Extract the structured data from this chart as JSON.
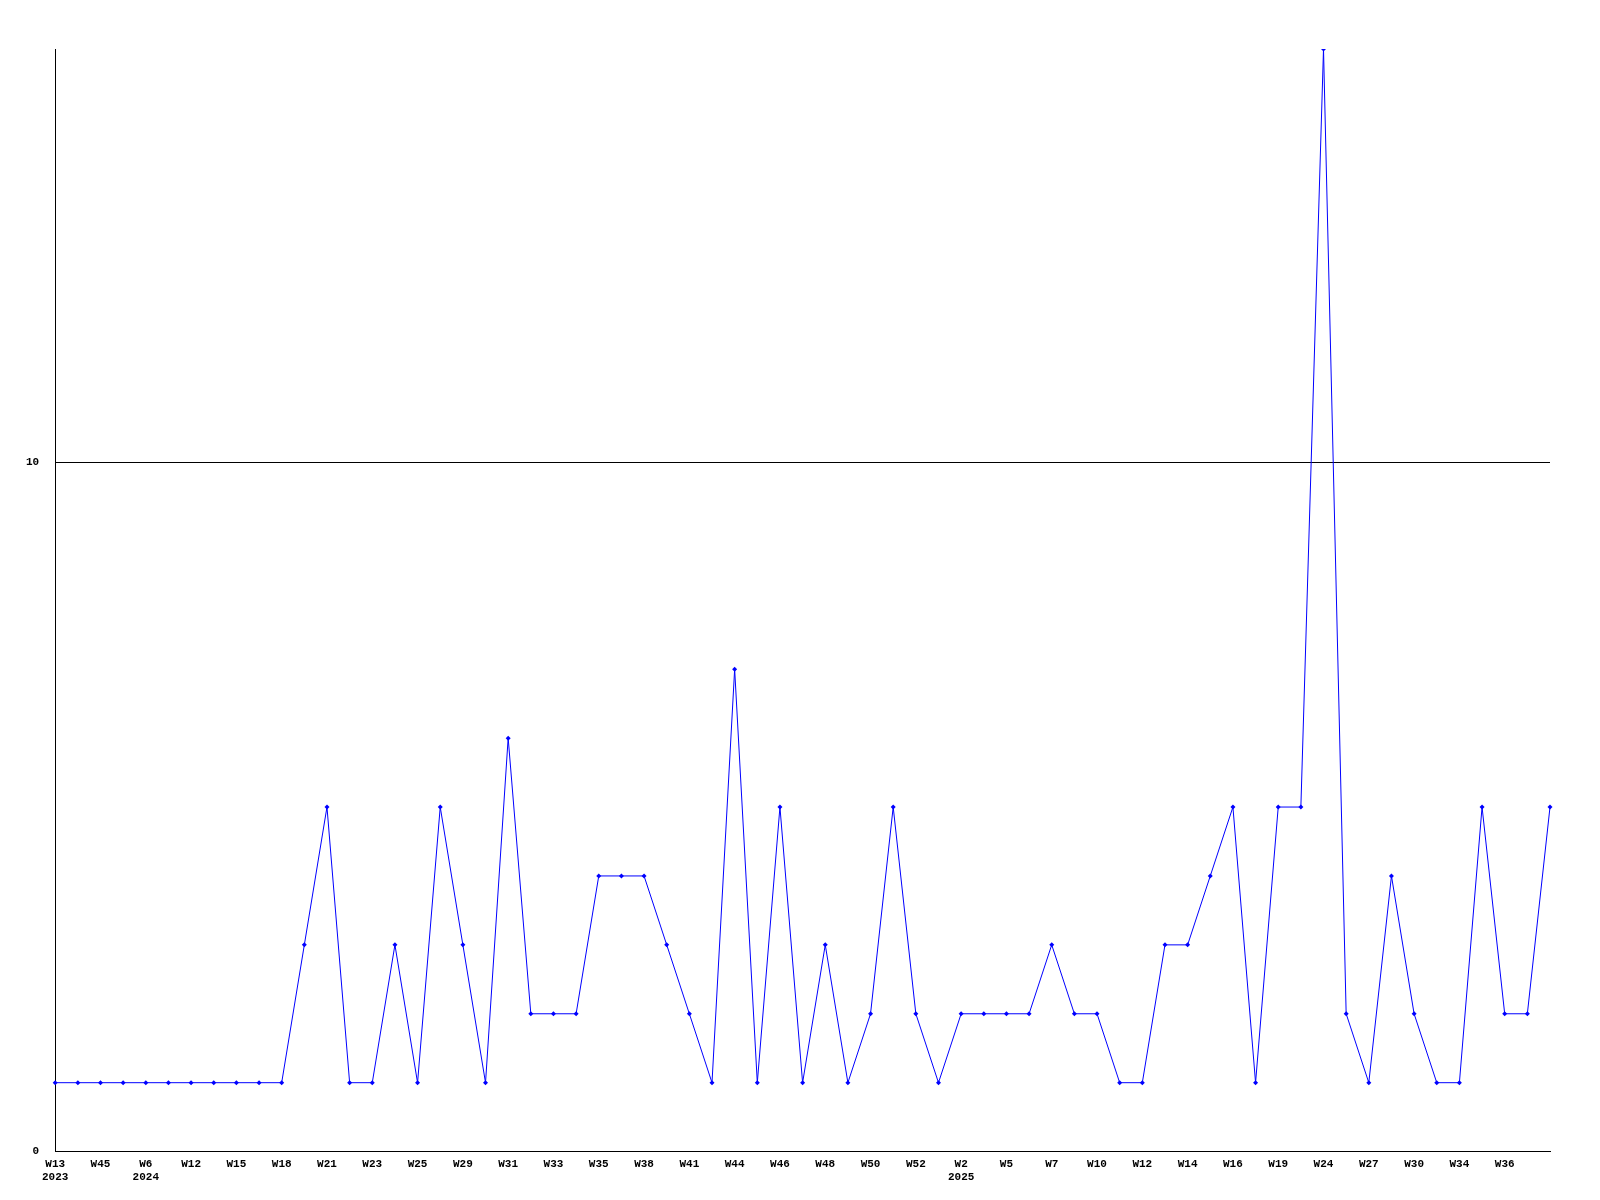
{
  "chart_data": {
    "type": "line",
    "categories": [
      "W13\n2023",
      null,
      "W45",
      null,
      "W6\n2024",
      null,
      "W12",
      null,
      "W15",
      null,
      "W18",
      null,
      "W21",
      null,
      "W23",
      null,
      "W25",
      null,
      "W29",
      null,
      "W31",
      null,
      "W33",
      null,
      "W35",
      null,
      "W38",
      null,
      "W41",
      null,
      "W44",
      null,
      "W46",
      null,
      "W48",
      null,
      "W50",
      null,
      "W52",
      null,
      "W2\n2025",
      null,
      "W5",
      null,
      "W7",
      null,
      "W10",
      null,
      "W12",
      null,
      "W14",
      null,
      "W16",
      null,
      "W19",
      null,
      "W24",
      null,
      "W27",
      null,
      "W30",
      null,
      "W34",
      null,
      "W36",
      null,
      null
    ],
    "series": [
      {
        "color": "#0000ff",
        "values": [
          1,
          1,
          1,
          1,
          1,
          1,
          1,
          1,
          1,
          1,
          1,
          3,
          5,
          1,
          1,
          3,
          1,
          5,
          3,
          1,
          6,
          2,
          2,
          2,
          4,
          4,
          4,
          3,
          2,
          1,
          7,
          1,
          5,
          1,
          3,
          1,
          2,
          5,
          2,
          1,
          2,
          2,
          2,
          2,
          3,
          2,
          2,
          1,
          1,
          3,
          3,
          4,
          5,
          1,
          5,
          5,
          16,
          2,
          1,
          4,
          2,
          1,
          1,
          5,
          2,
          2,
          5
        ]
      }
    ],
    "ylim": [
      0,
      16
    ],
    "yticks": [
      0,
      10
    ],
    "grid": "y",
    "legend": false,
    "marker": "diamond",
    "line_style": "solid"
  }
}
